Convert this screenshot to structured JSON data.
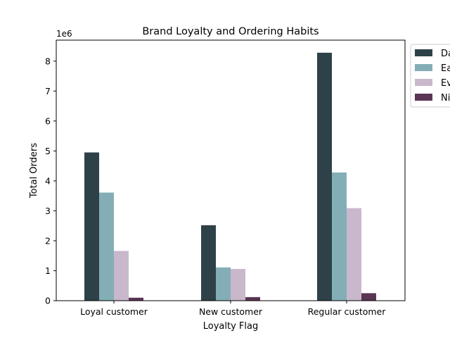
{
  "chart_data": {
    "type": "bar",
    "title": "Brand Loyalty and Ordering Habits",
    "xlabel": "Loyalty Flag",
    "ylabel": "Total Orders",
    "y_offset_label": "1e6",
    "categories": [
      "Loyal customer",
      "New customer",
      "Regular customer"
    ],
    "ylim": [
      0,
      8.7
    ],
    "yticks": [
      0,
      1,
      2,
      3,
      4,
      5,
      6,
      7,
      8
    ],
    "series": [
      {
        "name": "Da",
        "color": "#2e4148",
        "values": [
          4.95,
          2.52,
          8.28
        ]
      },
      {
        "name": "Ea",
        "color": "#83aeb6",
        "values": [
          3.61,
          1.11,
          4.28
        ]
      },
      {
        "name": "Ev",
        "color": "#c9b8cb",
        "values": [
          1.66,
          1.06,
          3.09
        ]
      },
      {
        "name": "Ni",
        "color": "#5b3555",
        "values": [
          0.1,
          0.12,
          0.25
        ]
      }
    ],
    "legend": {
      "placement": "outside-top-right"
    },
    "grid": false
  }
}
